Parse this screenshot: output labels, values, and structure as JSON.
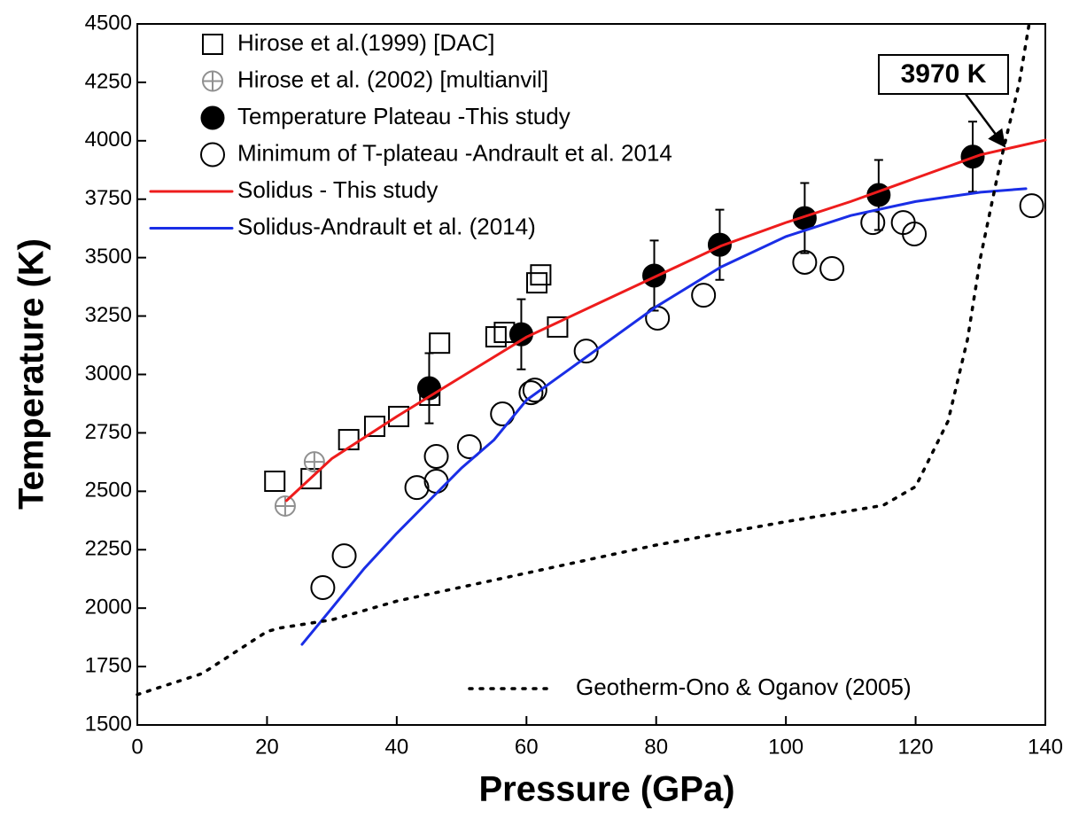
{
  "chart_data": {
    "type": "scatter",
    "xlabel": "Pressure (GPa)",
    "ylabel": "Temperature (K)",
    "xlim": [
      0,
      140
    ],
    "ylim": [
      1500,
      4500
    ],
    "xticks": [
      0,
      20,
      40,
      60,
      80,
      100,
      120,
      140
    ],
    "yticks": [
      1500,
      1750,
      2000,
      2250,
      2500,
      2750,
      3000,
      3250,
      3500,
      3750,
      4000,
      4250,
      4500
    ],
    "annotation": "3970 K",
    "series": [
      {
        "name": "Hirose et al.(1999) [DAC]",
        "kind": "markers",
        "marker": "square",
        "color": "#000000",
        "legend": "upper left",
        "x": [
          21.2,
          26.8,
          32.6,
          36.6,
          40.3,
          45.1,
          46.6,
          55.3,
          56.6,
          61.6,
          62.2,
          64.8
        ],
        "values": [
          2543,
          2554,
          2721,
          2778,
          2820,
          2911,
          3134,
          3161,
          3180,
          3392,
          3426,
          3203
        ]
      },
      {
        "name": "Hirose et al. (2002) [multianvil]",
        "kind": "markers",
        "marker": "crosshair",
        "color": "#909090",
        "legend": "upper left",
        "x": [
          22.8,
          27.3
        ],
        "values": [
          2437,
          2626
        ]
      },
      {
        "name": "Temperature Plateau -This study",
        "kind": "markers",
        "marker": "filled-circle",
        "color": "#000000",
        "legend": "upper left",
        "x": [
          45.0,
          59.2,
          79.7,
          89.8,
          102.9,
          114.3,
          128.8
        ],
        "values": [
          2941,
          3172,
          3423,
          3555,
          3669,
          3768,
          3932
        ],
        "errors": [
          150,
          150,
          150,
          150,
          150,
          150,
          150
        ]
      },
      {
        "name": "Minimum of T-plateau -Andrault et al. 2014",
        "kind": "markers",
        "marker": "open-circle",
        "color": "#000000",
        "legend": "upper left",
        "x": [
          28.6,
          31.9,
          43.1,
          46.1,
          46.1,
          51.2,
          56.3,
          60.7,
          61.3,
          69.2,
          80.2,
          87.3,
          102.9,
          107.1,
          113.4,
          118.1,
          119.8,
          137.9
        ],
        "values": [
          2088,
          2224,
          2516,
          2649,
          2543,
          2691,
          2831,
          2922,
          2933,
          3100,
          3241,
          3339,
          3480,
          3453,
          3650,
          3650,
          3601,
          3722
        ]
      },
      {
        "name": "Solidus - This study",
        "kind": "line",
        "dash": "solid",
        "color": "#ee1c1c",
        "legend": "upper left",
        "x": [
          23,
          30,
          40,
          50,
          60,
          70,
          80,
          90,
          100,
          110,
          120,
          130,
          140
        ],
        "values": [
          2460,
          2640,
          2820,
          2990,
          3160,
          3290,
          3420,
          3550,
          3650,
          3740,
          3840,
          3940,
          4003
        ]
      },
      {
        "name": "Solidus-Andrault et al. (2014)",
        "kind": "line",
        "dash": "solid",
        "color": "#1a2ee6",
        "legend": "upper left",
        "x": [
          25.4,
          30,
          35,
          40,
          45,
          50,
          55,
          60,
          70,
          80,
          90,
          100,
          110,
          120,
          130,
          137
        ],
        "values": [
          1845,
          2000,
          2170,
          2320,
          2460,
          2600,
          2720,
          2890,
          3090,
          3290,
          3460,
          3590,
          3680,
          3740,
          3780,
          3795
        ]
      },
      {
        "name": "Geotherm-Ono & Oganov (2005)",
        "kind": "line",
        "dash": "dotted",
        "color": "#000000",
        "legend": "lower right",
        "x": [
          0,
          10,
          20,
          22,
          30,
          40,
          60,
          80,
          100,
          115,
          120,
          125,
          128,
          130,
          133,
          136,
          137.5
        ],
        "values": [
          1630,
          1720,
          1900,
          1915,
          1950,
          2030,
          2150,
          2270,
          2370,
          2440,
          2520,
          2800,
          3150,
          3500,
          3900,
          4250,
          4500
        ]
      }
    ]
  }
}
